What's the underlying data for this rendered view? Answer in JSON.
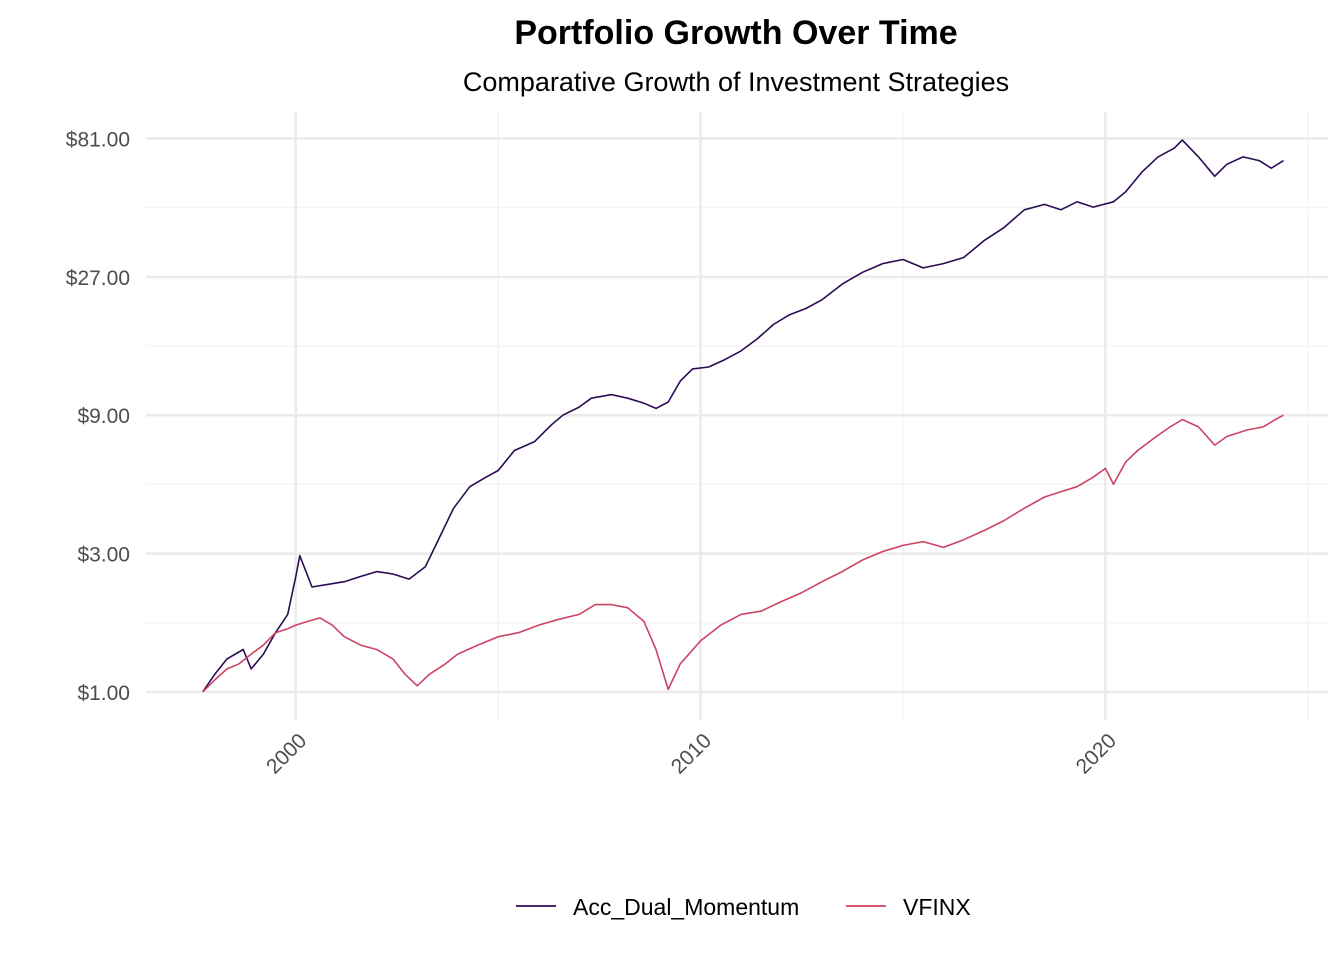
{
  "chart_data": {
    "type": "line",
    "title": "Portfolio Growth Over Time",
    "subtitle": "Comparative Growth of Investment Strategies",
    "xlabel": "",
    "ylabel": "",
    "x_ticks": [
      "2000",
      "2010",
      "2020"
    ],
    "x_tick_values": [
      2000,
      2010,
      2020
    ],
    "x_range": [
      1996.3,
      2025.5
    ],
    "y_scale": "log3",
    "y_ticks": [
      "$1.00",
      "$3.00",
      "$9.00",
      "$27.00",
      "$81.00"
    ],
    "y_tick_values": [
      1,
      3,
      9,
      27,
      81
    ],
    "y_range": [
      0.8,
      100
    ],
    "grid": true,
    "legend_position": "bottom",
    "series": [
      {
        "name": "Acc_Dual_Momentum",
        "color": "#2b0b54",
        "x": [
          1997.7,
          1998.0,
          1998.3,
          1998.7,
          1998.9,
          1999.2,
          1999.5,
          1999.8,
          2000.0,
          2000.1,
          2000.4,
          2000.8,
          2001.2,
          2001.6,
          2002.0,
          2002.4,
          2002.8,
          2003.2,
          2003.5,
          2003.9,
          2004.3,
          2004.7,
          2005.0,
          2005.4,
          2005.9,
          2006.3,
          2006.6,
          2007.0,
          2007.3,
          2007.8,
          2008.2,
          2008.6,
          2008.9,
          2009.2,
          2009.5,
          2009.8,
          2010.2,
          2010.6,
          2011.0,
          2011.4,
          2011.8,
          2012.2,
          2012.6,
          2013.0,
          2013.5,
          2014.0,
          2014.5,
          2015.0,
          2015.5,
          2016.0,
          2016.5,
          2017.0,
          2017.5,
          2018.0,
          2018.5,
          2018.9,
          2019.3,
          2019.7,
          2020.2,
          2020.5,
          2020.9,
          2021.3,
          2021.7,
          2021.9,
          2022.3,
          2022.7,
          2023.0,
          2023.4,
          2023.8,
          2024.1,
          2024.4
        ],
        "values": [
          1.0,
          1.15,
          1.3,
          1.4,
          1.2,
          1.35,
          1.6,
          1.85,
          2.5,
          2.95,
          2.3,
          2.35,
          2.4,
          2.5,
          2.6,
          2.55,
          2.45,
          2.7,
          3.3,
          4.3,
          5.1,
          5.5,
          5.8,
          6.8,
          7.3,
          8.3,
          9.0,
          9.6,
          10.3,
          10.6,
          10.3,
          9.9,
          9.5,
          10.0,
          11.8,
          13.0,
          13.2,
          14.0,
          15.0,
          16.5,
          18.5,
          20.0,
          21.0,
          22.5,
          25.5,
          28.0,
          30.0,
          31.0,
          29.0,
          30.0,
          31.5,
          36.0,
          40.0,
          46.0,
          48.0,
          46.0,
          49.0,
          47.0,
          49.0,
          53.0,
          62.0,
          70.0,
          75.0,
          80.0,
          70.0,
          60.0,
          66.0,
          70.0,
          68.0,
          64.0,
          68.0
        ]
      },
      {
        "name": "VFINX",
        "color": "#cd4363",
        "x": [
          1997.7,
          1998.0,
          1998.3,
          1998.6,
          1998.9,
          1999.2,
          1999.5,
          1999.8,
          2000.0,
          2000.3,
          2000.6,
          2000.9,
          2001.2,
          2001.6,
          2002.0,
          2002.4,
          2002.7,
          2003.0,
          2003.3,
          2003.7,
          2004.0,
          2004.5,
          2005.0,
          2005.5,
          2006.0,
          2006.5,
          2007.0,
          2007.4,
          2007.8,
          2008.2,
          2008.6,
          2008.9,
          2009.2,
          2009.5,
          2010.0,
          2010.5,
          2011.0,
          2011.5,
          2012.0,
          2012.5,
          2013.0,
          2013.5,
          2014.0,
          2014.5,
          2015.0,
          2015.5,
          2016.0,
          2016.5,
          2017.0,
          2017.5,
          2018.0,
          2018.5,
          2018.9,
          2019.3,
          2019.7,
          2020.0,
          2020.2,
          2020.5,
          2020.8,
          2021.2,
          2021.6,
          2021.9,
          2022.3,
          2022.7,
          2023.0,
          2023.5,
          2023.9,
          2024.2,
          2024.4
        ],
        "values": [
          1.0,
          1.1,
          1.2,
          1.25,
          1.35,
          1.45,
          1.6,
          1.65,
          1.7,
          1.75,
          1.8,
          1.7,
          1.55,
          1.45,
          1.4,
          1.3,
          1.15,
          1.05,
          1.15,
          1.25,
          1.35,
          1.45,
          1.55,
          1.6,
          1.7,
          1.78,
          1.85,
          2.0,
          2.0,
          1.95,
          1.75,
          1.4,
          1.02,
          1.25,
          1.5,
          1.7,
          1.85,
          1.9,
          2.05,
          2.2,
          2.4,
          2.6,
          2.85,
          3.05,
          3.2,
          3.3,
          3.15,
          3.35,
          3.6,
          3.9,
          4.3,
          4.7,
          4.9,
          5.1,
          5.5,
          5.9,
          5.2,
          6.2,
          6.8,
          7.5,
          8.2,
          8.7,
          8.2,
          7.1,
          7.6,
          8.0,
          8.2,
          8.7,
          9.0
        ]
      }
    ]
  }
}
